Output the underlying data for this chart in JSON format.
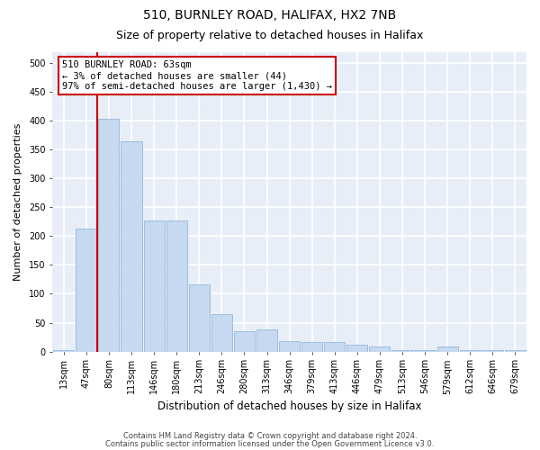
{
  "title1": "510, BURNLEY ROAD, HALIFAX, HX2 7NB",
  "title2": "Size of property relative to detached houses in Halifax",
  "xlabel": "Distribution of detached houses by size in Halifax",
  "ylabel": "Number of detached properties",
  "bar_labels": [
    "13sqm",
    "47sqm",
    "80sqm",
    "113sqm",
    "146sqm",
    "180sqm",
    "213sqm",
    "246sqm",
    "280sqm",
    "313sqm",
    "346sqm",
    "379sqm",
    "413sqm",
    "446sqm",
    "479sqm",
    "513sqm",
    "546sqm",
    "579sqm",
    "612sqm",
    "646sqm",
    "679sqm"
  ],
  "bar_values": [
    2,
    213,
    403,
    365,
    228,
    228,
    117,
    65,
    35,
    38,
    18,
    17,
    17,
    12,
    8,
    3,
    3,
    8,
    2,
    2,
    2
  ],
  "bar_color": "#c6d9f0",
  "bar_edgecolor": "#95b8d9",
  "ylim": [
    0,
    520
  ],
  "yticks": [
    0,
    50,
    100,
    150,
    200,
    250,
    300,
    350,
    400,
    450,
    500
  ],
  "vline_color": "#cc0000",
  "annotation_text": "510 BURNLEY ROAD: 63sqm\n← 3% of detached houses are smaller (44)\n97% of semi-detached houses are larger (1,430) →",
  "annotation_box_facecolor": "#ffffff",
  "annotation_box_edgecolor": "#cc0000",
  "footnote1": "Contains HM Land Registry data © Crown copyright and database right 2024.",
  "footnote2": "Contains public sector information licensed under the Open Government Licence v3.0.",
  "fig_facecolor": "#ffffff",
  "plot_facecolor": "#e8eef8",
  "grid_color": "#ffffff",
  "title1_fontsize": 10,
  "title2_fontsize": 9,
  "xlabel_fontsize": 8.5,
  "ylabel_fontsize": 8,
  "tick_fontsize": 7,
  "footnote_fontsize": 6
}
